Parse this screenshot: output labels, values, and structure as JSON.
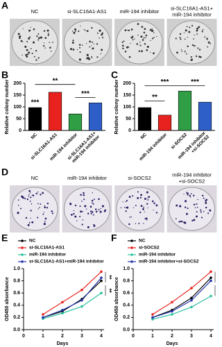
{
  "image_panels": [
    {
      "letter": "A",
      "labels": [
        [
          "NC"
        ],
        [
          "si-SLC16A1-AS1"
        ],
        [
          "miR-194 inhibitor"
        ],
        [
          "si-SLC16A1-AS1+",
          "miR-194 inhibitor"
        ]
      ]
    },
    {
      "letter": "D",
      "labels": [
        [
          "NC"
        ],
        [
          "miR-194 inhibitor"
        ],
        [
          "si-SOCS2"
        ],
        [
          "miR-194 inhibitor",
          "+si-SOCS2"
        ]
      ]
    }
  ],
  "chart_data": [
    {
      "type": "bar",
      "panel": "B",
      "y_label": "Relative colony number",
      "categories": [
        "NC",
        "si-SLC16A1-AS1",
        "miR-194 inhibitor",
        "si-SLC16A1-AS1+ miR-194 inhibitor"
      ],
      "values": [
        97,
        162,
        70,
        117
      ],
      "colors": [
        "#000000",
        "#e8231f",
        "#2f9e45",
        "#2e5fc9"
      ],
      "ylim": [
        0,
        200
      ],
      "yticks": [
        0,
        50,
        100,
        150,
        200
      ],
      "annotations": [
        "***",
        "**",
        "***"
      ]
    },
    {
      "type": "bar",
      "panel": "C",
      "y_label": "Relative colony number",
      "categories": [
        "NC",
        "miR-194 inhibitor",
        "si-SOCS2",
        "miR-194 inhibitor +si-SOCS2"
      ],
      "values": [
        97,
        65,
        167,
        120
      ],
      "colors": [
        "#000000",
        "#e8231f",
        "#2f9e45",
        "#2e5fc9"
      ],
      "ylim": [
        0,
        200
      ],
      "yticks": [
        0,
        50,
        100,
        150,
        200
      ],
      "annotations": [
        "**",
        "***",
        "***"
      ]
    },
    {
      "type": "line",
      "panel": "E",
      "y_label": "OD450 absorbance",
      "x_label": "Days",
      "x": [
        1,
        2,
        3,
        4
      ],
      "xlim": [
        0,
        4
      ],
      "xticks": [
        0,
        1,
        2,
        3,
        4
      ],
      "ylim": [
        0,
        1
      ],
      "yticks": [
        {
          "value": 0,
          "label": "0.0"
        },
        0.2,
        0.4,
        0.6,
        0.8,
        {
          "value": 1,
          "label": "1.0"
        }
      ],
      "legend": "upper left",
      "series": [
        {
          "name": "NC",
          "color": "#000000",
          "values": [
            0.2,
            0.3,
            0.5,
            0.8
          ]
        },
        {
          "name": "si-SLC16A1-AS1",
          "color": "#e8231f",
          "values": [
            0.25,
            0.45,
            0.65,
            0.95
          ]
        },
        {
          "name": "miR-194 inhibitor",
          "color": "#2bc0a0",
          "values": [
            0.18,
            0.27,
            0.38,
            0.6
          ]
        },
        {
          "name": "si-SLC16A1-AS1+miR-194 inhibitor",
          "color": "#2233aa",
          "values": [
            0.2,
            0.32,
            0.48,
            0.85
          ]
        }
      ],
      "annotations": [
        "**",
        "**"
      ]
    },
    {
      "type": "line",
      "panel": "F",
      "y_label": "OD450 absorbance",
      "x_label": "Days",
      "x": [
        1,
        2,
        3,
        4
      ],
      "xlim": [
        0,
        4
      ],
      "xticks": [
        0,
        1,
        2,
        3,
        4
      ],
      "ylim": [
        0,
        1
      ],
      "yticks": [
        {
          "value": 0,
          "label": "0.0"
        },
        0.2,
        0.4,
        0.6,
        0.8,
        {
          "value": 1,
          "label": "1.0"
        }
      ],
      "legend": "upper left",
      "series": [
        {
          "name": "NC",
          "color": "#000000",
          "values": [
            0.2,
            0.32,
            0.52,
            0.85
          ]
        },
        {
          "name": "si-SOCS2",
          "color": "#e8231f",
          "values": [
            0.25,
            0.45,
            0.68,
            0.95
          ]
        },
        {
          "name": "miR-194 inhibitor",
          "color": "#2bc0a0",
          "values": [
            0.17,
            0.25,
            0.37,
            0.55
          ]
        },
        {
          "name": "miR-194 inhibitor+si-SOCS2",
          "color": "#2233aa",
          "values": [
            0.2,
            0.3,
            0.48,
            0.8
          ]
        }
      ],
      "annotations": [
        "*",
        "**"
      ]
    }
  ]
}
